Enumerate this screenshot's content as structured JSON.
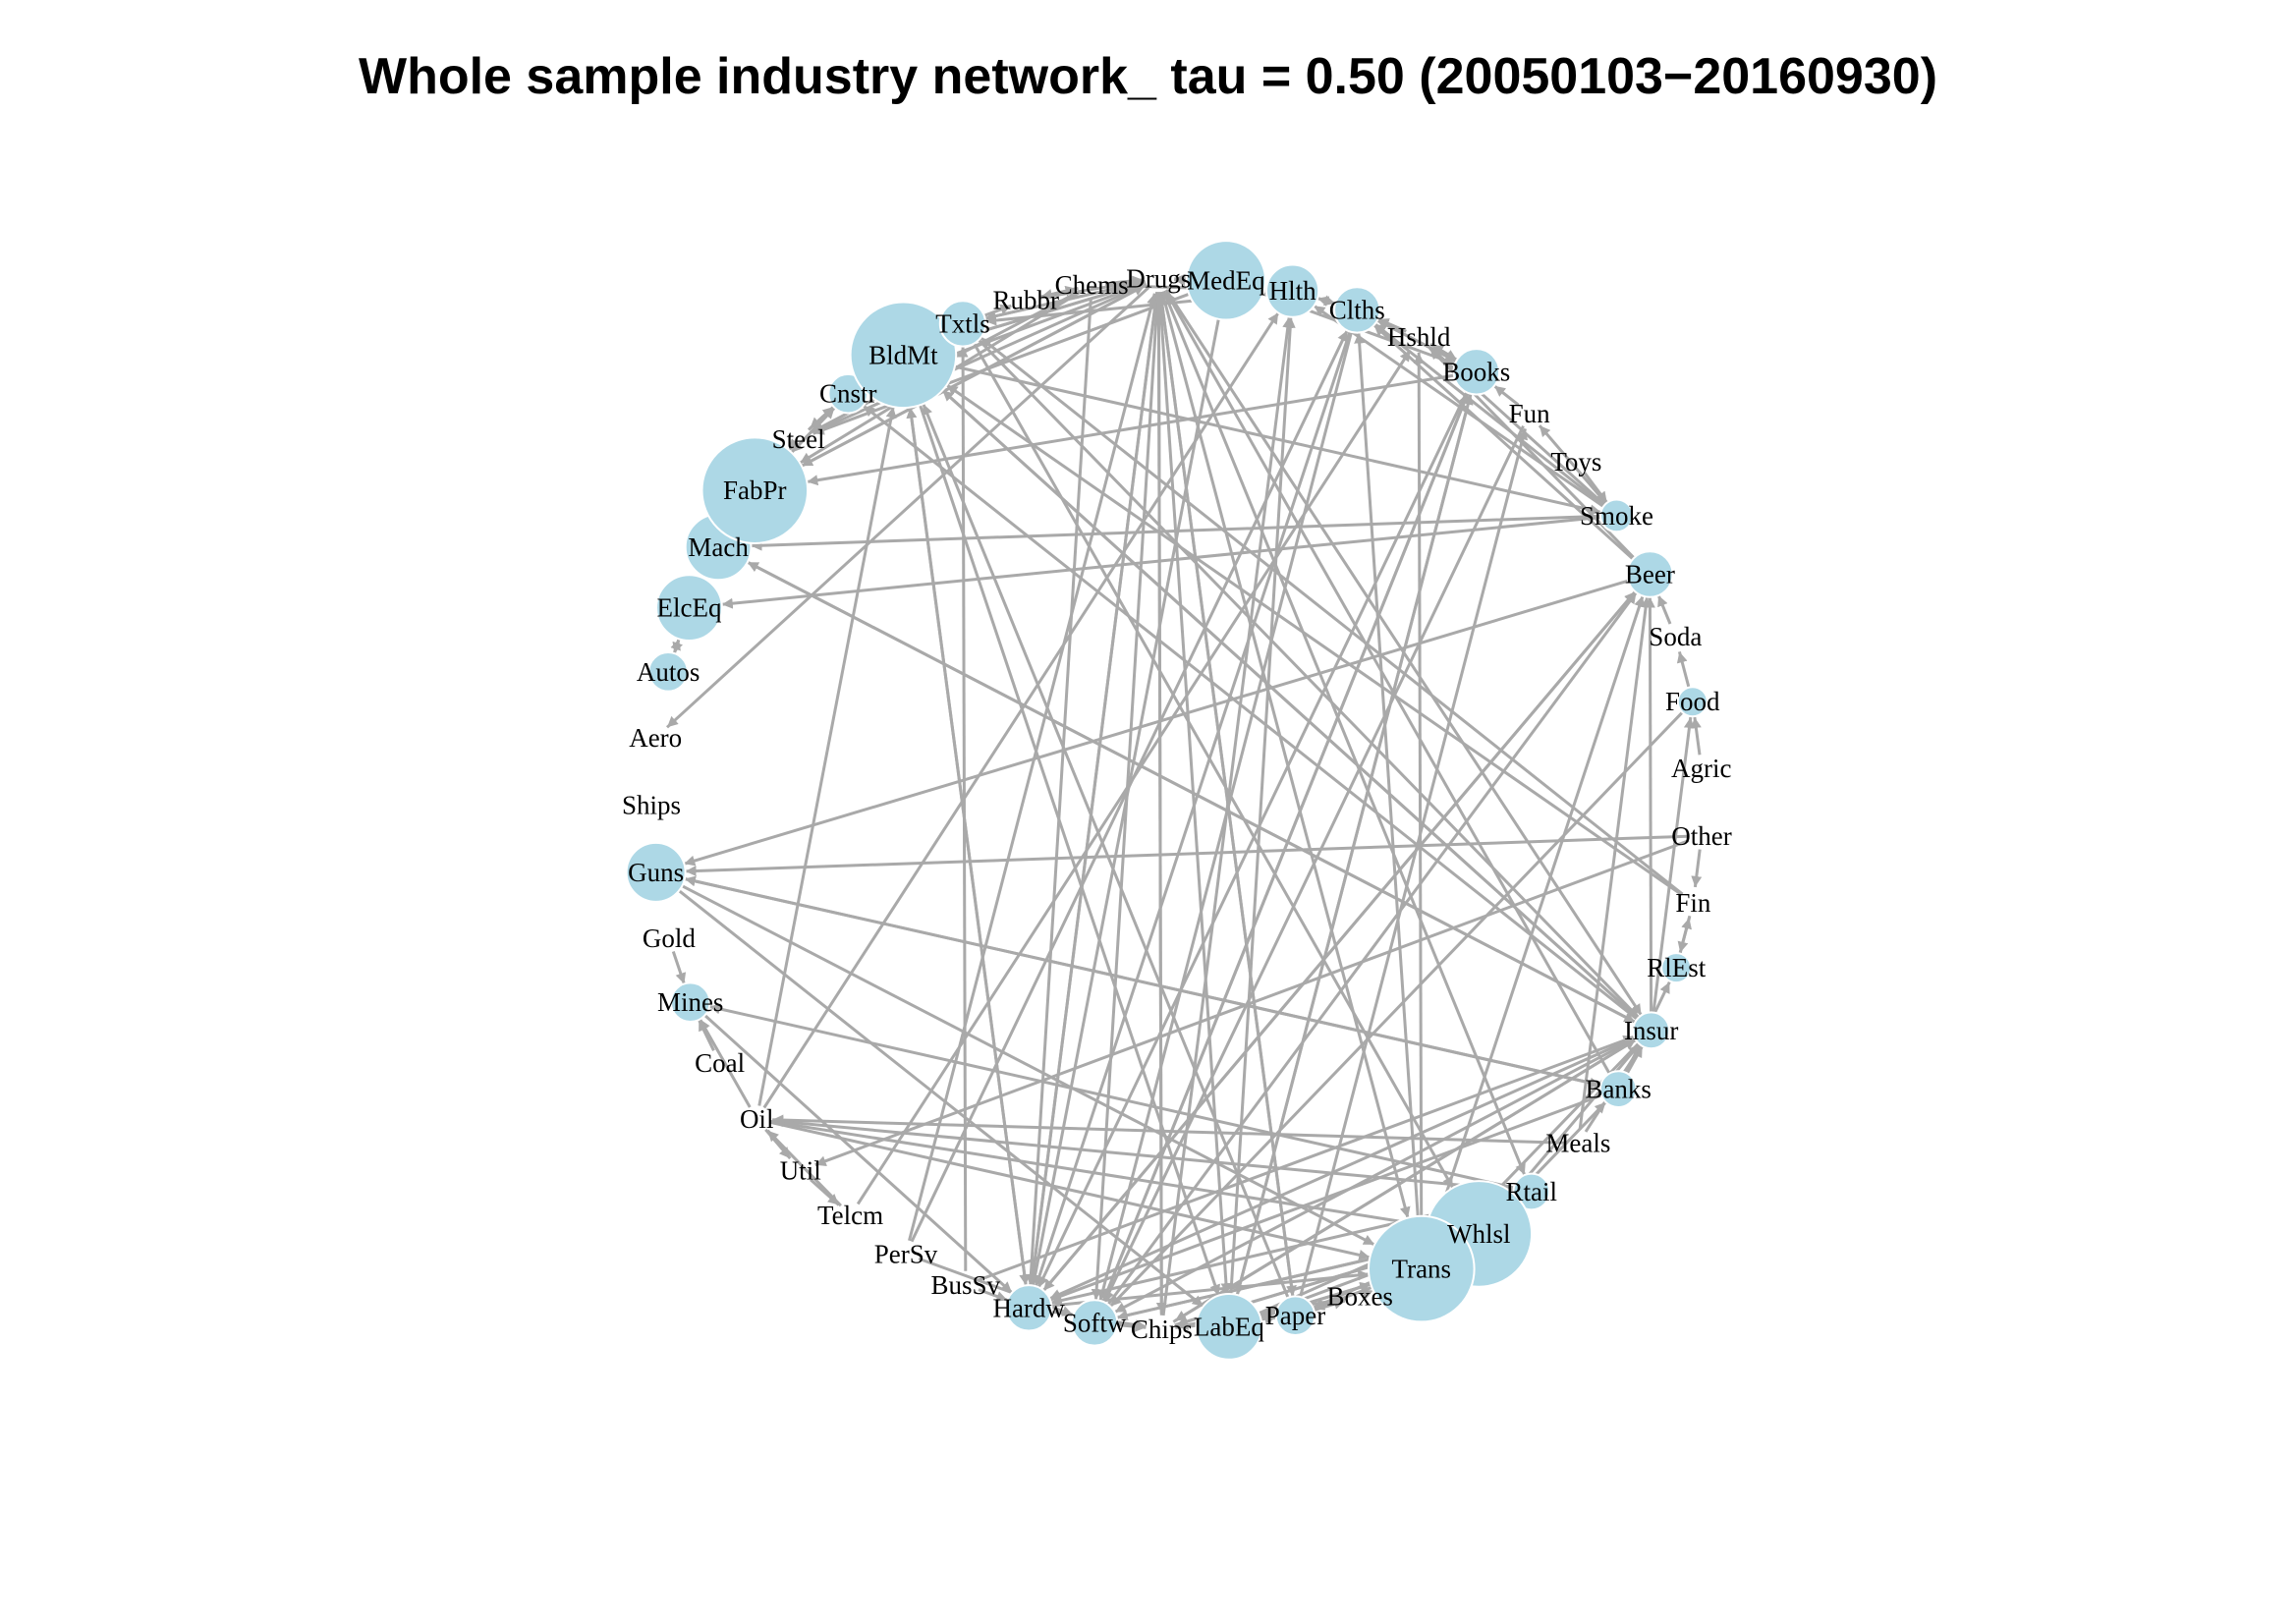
{
  "title": "Whole sample industry network_ tau = 0.50 (20050103−20160930)",
  "colors": {
    "node": "#add8e6",
    "edge": "#a9a9a9",
    "background": "#ffffff"
  },
  "nodes": [
    {
      "id": "Drugs",
      "label": "Drugs",
      "weight": 0
    },
    {
      "id": "MedEq",
      "label": "MedEq",
      "weight": 4
    },
    {
      "id": "Hlth",
      "label": "Hlth",
      "weight": 2
    },
    {
      "id": "Clths",
      "label": "Clths",
      "weight": 1.5
    },
    {
      "id": "Hshld",
      "label": "Hshld",
      "weight": 0
    },
    {
      "id": "Books",
      "label": "Books",
      "weight": 1.5
    },
    {
      "id": "Fun",
      "label": "Fun",
      "weight": 0
    },
    {
      "id": "Toys",
      "label": "Toys",
      "weight": 0
    },
    {
      "id": "Smoke",
      "label": "Smoke",
      "weight": 0.5
    },
    {
      "id": "Beer",
      "label": "Beer",
      "weight": 1.5
    },
    {
      "id": "Soda",
      "label": "Soda",
      "weight": 0
    },
    {
      "id": "Food",
      "label": "Food",
      "weight": 0.3
    },
    {
      "id": "Agric",
      "label": "Agric",
      "weight": 0
    },
    {
      "id": "Other",
      "label": "Other",
      "weight": 0
    },
    {
      "id": "Fin",
      "label": "Fin",
      "weight": 0
    },
    {
      "id": "RlEst",
      "label": "RlEst",
      "weight": 0.3
    },
    {
      "id": "Insur",
      "label": "Insur",
      "weight": 0.8
    },
    {
      "id": "Banks",
      "label": "Banks",
      "weight": 0.8
    },
    {
      "id": "Meals",
      "label": "Meals",
      "weight": 0
    },
    {
      "id": "Rtail",
      "label": "Rtail",
      "weight": 0.8
    },
    {
      "id": "Whlsl",
      "label": "Whlsl",
      "weight": 6
    },
    {
      "id": "Trans",
      "label": "Trans",
      "weight": 6
    },
    {
      "id": "Boxes",
      "label": "Boxes",
      "weight": 0
    },
    {
      "id": "Paper",
      "label": "Paper",
      "weight": 1
    },
    {
      "id": "LabEq",
      "label": "LabEq",
      "weight": 3
    },
    {
      "id": "Chips",
      "label": "Chips",
      "weight": 0
    },
    {
      "id": "Softw",
      "label": "Softw",
      "weight": 1.5
    },
    {
      "id": "Hardw",
      "label": "Hardw",
      "weight": 1.5
    },
    {
      "id": "BusSv",
      "label": "BusSv",
      "weight": 0
    },
    {
      "id": "PerSv",
      "label": "PerSv",
      "weight": 0
    },
    {
      "id": "Telcm",
      "label": "Telcm",
      "weight": 0
    },
    {
      "id": "Util",
      "label": "Util",
      "weight": 0
    },
    {
      "id": "Oil",
      "label": "Oil",
      "weight": 0
    },
    {
      "id": "Coal",
      "label": "Coal",
      "weight": 0
    },
    {
      "id": "Mines",
      "label": "Mines",
      "weight": 1
    },
    {
      "id": "Gold",
      "label": "Gold",
      "weight": 0
    },
    {
      "id": "Guns",
      "label": "Guns",
      "weight": 2.5
    },
    {
      "id": "Ships",
      "label": "Ships",
      "weight": 0
    },
    {
      "id": "Aero",
      "label": "Aero",
      "weight": 0
    },
    {
      "id": "Autos",
      "label": "Autos",
      "weight": 1
    },
    {
      "id": "ElcEq",
      "label": "ElcEq",
      "weight": 3
    },
    {
      "id": "Mach",
      "label": "Mach",
      "weight": 3
    },
    {
      "id": "FabPr",
      "label": "FabPr",
      "weight": 6
    },
    {
      "id": "Steel",
      "label": "Steel",
      "weight": 0
    },
    {
      "id": "Cnstr",
      "label": "Cnstr",
      "weight": 1
    },
    {
      "id": "BldMt",
      "label": "BldMt",
      "weight": 6
    },
    {
      "id": "Txtls",
      "label": "Txtls",
      "weight": 1.5
    },
    {
      "id": "Rubbr",
      "label": "Rubbr",
      "weight": 0
    },
    {
      "id": "Chems",
      "label": "Chems",
      "weight": 0
    }
  ],
  "edges": [
    [
      "Drugs",
      "BldMt"
    ],
    [
      "Drugs",
      "Txtls"
    ],
    [
      "Drugs",
      "FabPr"
    ],
    [
      "Drugs",
      "Cnstr"
    ],
    [
      "Drugs",
      "Steel"
    ],
    [
      "Drugs",
      "Chips"
    ],
    [
      "Drugs",
      "LabEq"
    ],
    [
      "Drugs",
      "Paper"
    ],
    [
      "Drugs",
      "Trans"
    ],
    [
      "Drugs",
      "Insur"
    ],
    [
      "Drugs",
      "Hardw"
    ],
    [
      "Drugs",
      "Softw"
    ],
    [
      "Drugs",
      "Rtail"
    ],
    [
      "Drugs",
      "Aero"
    ],
    [
      "Chems",
      "FabPr"
    ],
    [
      "Chems",
      "Steel"
    ],
    [
      "Chems",
      "Drugs"
    ],
    [
      "Rubbr",
      "Drugs"
    ],
    [
      "MedEq",
      "Drugs"
    ],
    [
      "MedEq",
      "Hardw"
    ],
    [
      "MedEq",
      "Steel"
    ],
    [
      "MedEq",
      "Books"
    ],
    [
      "Hlth",
      "Drugs"
    ],
    [
      "Hlth",
      "MedEq"
    ],
    [
      "Hlth",
      "Clths"
    ],
    [
      "Hlth",
      "Txtls"
    ],
    [
      "Clths",
      "Hlth"
    ],
    [
      "Clths",
      "Books"
    ],
    [
      "Clths",
      "Hardw"
    ],
    [
      "Clths",
      "Softw"
    ],
    [
      "Hshld",
      "Clths"
    ],
    [
      "Hshld",
      "Books"
    ],
    [
      "Books",
      "Hshld"
    ],
    [
      "Books",
      "Clths"
    ],
    [
      "Books",
      "LabEq"
    ],
    [
      "Books",
      "FabPr"
    ],
    [
      "Books",
      "Softw"
    ],
    [
      "Books",
      "Hardw"
    ],
    [
      "Fun",
      "Books"
    ],
    [
      "Fun",
      "Softw"
    ],
    [
      "Toys",
      "Smoke"
    ],
    [
      "Smoke",
      "Hshld"
    ],
    [
      "Smoke",
      "Clths"
    ],
    [
      "Smoke",
      "Mach"
    ],
    [
      "Smoke",
      "ElcEq"
    ],
    [
      "Smoke",
      "Hlth"
    ],
    [
      "Smoke",
      "Fun"
    ],
    [
      "Beer",
      "Hshld"
    ],
    [
      "Beer",
      "Clths"
    ],
    [
      "Beer",
      "Guns"
    ],
    [
      "Beer",
      "Hardw"
    ],
    [
      "Soda",
      "Beer"
    ],
    [
      "Food",
      "Soda"
    ],
    [
      "Food",
      "Softw"
    ],
    [
      "Agric",
      "Food"
    ],
    [
      "Other",
      "Guns"
    ],
    [
      "Other",
      "Util"
    ],
    [
      "Other",
      "Fin"
    ],
    [
      "Fin",
      "RlEst"
    ],
    [
      "Fin",
      "BldMt"
    ],
    [
      "Fin",
      "Txtls"
    ],
    [
      "RlEst",
      "Fin"
    ],
    [
      "Insur",
      "Mach"
    ],
    [
      "Insur",
      "Food"
    ],
    [
      "Insur",
      "Beer"
    ],
    [
      "Insur",
      "Hardw"
    ],
    [
      "Insur",
      "Softw"
    ],
    [
      "Insur",
      "Chips"
    ],
    [
      "Insur",
      "Trans"
    ],
    [
      "Insur",
      "Cnstr"
    ],
    [
      "Insur",
      "BldMt"
    ],
    [
      "Banks",
      "Insur"
    ],
    [
      "Banks",
      "RlEst"
    ],
    [
      "Banks",
      "Hardw"
    ],
    [
      "Banks",
      "Guns"
    ],
    [
      "Banks",
      "Drugs"
    ],
    [
      "Meals",
      "Insur"
    ],
    [
      "Meals",
      "Oil"
    ],
    [
      "Meals",
      "Beer"
    ],
    [
      "Rtail",
      "Oil"
    ],
    [
      "Rtail",
      "Hardw"
    ],
    [
      "Rtail",
      "Mines"
    ],
    [
      "Whlsl",
      "Softw"
    ],
    [
      "Whlsl",
      "Chips"
    ],
    [
      "Whlsl",
      "LabEq"
    ],
    [
      "Whlsl",
      "Paper"
    ],
    [
      "Whlsl",
      "Banks"
    ],
    [
      "Whlsl",
      "Insur"
    ],
    [
      "Trans",
      "LabEq"
    ],
    [
      "Trans",
      "Paper"
    ],
    [
      "Trans",
      "Beer"
    ],
    [
      "Trans",
      "Hshld"
    ],
    [
      "Trans",
      "Clths"
    ],
    [
      "Boxes",
      "Trans"
    ],
    [
      "Boxes",
      "Chips"
    ],
    [
      "Paper",
      "Fun"
    ],
    [
      "Paper",
      "BldMt"
    ],
    [
      "Paper",
      "Drugs"
    ],
    [
      "Paper",
      "Boxes"
    ],
    [
      "LabEq",
      "Trans"
    ],
    [
      "LabEq",
      "Rtail"
    ],
    [
      "LabEq",
      "Hlth"
    ],
    [
      "LabEq",
      "Books"
    ],
    [
      "Chips",
      "Paper"
    ],
    [
      "Chips",
      "Whlsl"
    ],
    [
      "Chips",
      "Insur"
    ],
    [
      "Chips",
      "Hlth"
    ],
    [
      "Chips",
      "Drugs"
    ],
    [
      "Softw",
      "Whlsl"
    ],
    [
      "Softw",
      "Beer"
    ],
    [
      "Softw",
      "Books"
    ],
    [
      "Softw",
      "Chips"
    ],
    [
      "Hardw",
      "Chips"
    ],
    [
      "Hardw",
      "Trans"
    ],
    [
      "Hardw",
      "BldMt"
    ],
    [
      "Hardw",
      "Beer"
    ],
    [
      "Hardw",
      "Drugs"
    ],
    [
      "BusSv",
      "Hardw"
    ],
    [
      "BusSv",
      "Txtls"
    ],
    [
      "BusSv",
      "Insur"
    ],
    [
      "PerSv",
      "Softw"
    ],
    [
      "PerSv",
      "Clths"
    ],
    [
      "PerSv",
      "Drugs"
    ],
    [
      "Telcm",
      "Hshld"
    ],
    [
      "Telcm",
      "Oil"
    ],
    [
      "Util",
      "Telcm"
    ],
    [
      "Oil",
      "Util"
    ],
    [
      "Oil",
      "Whlsl"
    ],
    [
      "Oil",
      "Trans"
    ],
    [
      "Oil",
      "Mines"
    ],
    [
      "Oil",
      "BldMt"
    ],
    [
      "Oil",
      "Hlth"
    ],
    [
      "Coal",
      "Mines"
    ],
    [
      "Mines",
      "Hardw"
    ],
    [
      "Gold",
      "Mines"
    ],
    [
      "Guns",
      "Trans"
    ],
    [
      "Guns",
      "LabEq"
    ],
    [
      "Guns",
      "Banks"
    ],
    [
      "Autos",
      "ElcEq"
    ],
    [
      "ElcEq",
      "Autos"
    ],
    [
      "ElcEq",
      "Mach"
    ],
    [
      "Mach",
      "ElcEq"
    ],
    [
      "Mach",
      "FabPr"
    ],
    [
      "Mach",
      "Insur"
    ],
    [
      "FabPr",
      "Mach"
    ],
    [
      "FabPr",
      "Steel"
    ],
    [
      "FabPr",
      "Cnstr"
    ],
    [
      "FabPr",
      "Drugs"
    ],
    [
      "Steel",
      "FabPr"
    ],
    [
      "Steel",
      "Cnstr"
    ],
    [
      "Cnstr",
      "Steel"
    ],
    [
      "Cnstr",
      "FabPr"
    ],
    [
      "Cnstr",
      "BldMt"
    ],
    [
      "BldMt",
      "Cnstr"
    ],
    [
      "BldMt",
      "Hardw"
    ],
    [
      "BldMt",
      "LabEq"
    ],
    [
      "BldMt",
      "Smoke"
    ],
    [
      "BldMt",
      "Insur"
    ],
    [
      "BldMt",
      "Drugs"
    ],
    [
      "Txtls",
      "Drugs"
    ],
    [
      "Txtls",
      "Whlsl"
    ],
    [
      "Txtls",
      "Rubbr"
    ],
    [
      "Txtls",
      "Insur"
    ],
    [
      "Rubbr",
      "Chems"
    ],
    [
      "Chems",
      "Rubbr"
    ],
    [
      "Chems",
      "Hlth"
    ],
    [
      "Chems",
      "Hardw"
    ]
  ]
}
